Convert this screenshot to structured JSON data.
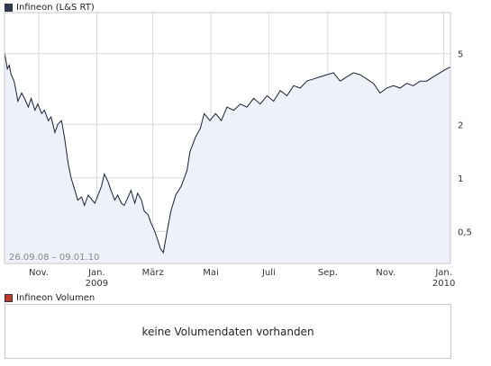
{
  "main_legend": {
    "label": "Infineon (L&S RT)",
    "swatch_color": "#2c3e55"
  },
  "volume_legend": {
    "label": "Infineon Volumen",
    "swatch_color": "#c0392b"
  },
  "volume_panel": {
    "message": "keine Volumendaten vorhanden"
  },
  "chart_data": {
    "type": "area",
    "title": "",
    "xlabel": "",
    "ylabel": "",
    "y_scale": "log",
    "ylim": [
      0.33,
      8.5
    ],
    "y_ticks": [
      5,
      2,
      1,
      0.5
    ],
    "y_tick_labels": [
      "5",
      "2",
      "1",
      "0,5"
    ],
    "x_ticks": [
      {
        "label": "Nov.",
        "date": "2008-11-01"
      },
      {
        "label": "Jan.",
        "sublabel": "2009",
        "date": "2009-01-01"
      },
      {
        "label": "März",
        "date": "2009-03-01"
      },
      {
        "label": "Mai",
        "date": "2009-05-01"
      },
      {
        "label": "Juli",
        "date": "2009-07-01"
      },
      {
        "label": "Sep.",
        "date": "2009-09-01"
      },
      {
        "label": "Nov.",
        "date": "2009-11-01"
      },
      {
        "label": "Jan.",
        "sublabel": "2010",
        "date": "2010-01-01"
      }
    ],
    "date_range_label": "26.09.08 – 09.01.10",
    "grid": true,
    "line_color": "#1a2236",
    "fill_color": "#eef0fa",
    "series": [
      {
        "x": [
          "2008-09-26",
          "2008-09-29",
          "2008-10-01",
          "2008-10-03",
          "2008-10-06",
          "2008-10-08",
          "2008-10-10",
          "2008-10-14",
          "2008-10-17",
          "2008-10-21",
          "2008-10-24",
          "2008-10-28",
          "2008-10-31",
          "2008-11-04",
          "2008-11-07",
          "2008-11-11",
          "2008-11-14",
          "2008-11-18",
          "2008-11-21",
          "2008-11-25",
          "2008-11-28",
          "2008-12-02",
          "2008-12-05",
          "2008-12-09",
          "2008-12-12",
          "2008-12-16",
          "2008-12-19",
          "2008-12-23",
          "2008-12-30",
          "2009-01-06",
          "2009-01-09",
          "2009-01-13",
          "2009-01-16",
          "2009-01-20",
          "2009-01-23",
          "2009-01-27",
          "2009-01-30",
          "2009-02-03",
          "2009-02-06",
          "2009-02-10",
          "2009-02-13",
          "2009-02-17",
          "2009-02-20",
          "2009-02-24",
          "2009-02-27",
          "2009-03-03",
          "2009-03-06",
          "2009-03-09",
          "2009-03-12",
          "2009-03-16",
          "2009-03-20",
          "2009-03-25",
          "2009-03-31",
          "2009-04-06",
          "2009-04-09",
          "2009-04-15",
          "2009-04-20",
          "2009-04-24",
          "2009-04-30",
          "2009-05-06",
          "2009-05-12",
          "2009-05-18",
          "2009-05-25",
          "2009-06-01",
          "2009-06-08",
          "2009-06-15",
          "2009-06-22",
          "2009-06-29",
          "2009-07-06",
          "2009-07-13",
          "2009-07-20",
          "2009-07-27",
          "2009-08-03",
          "2009-08-10",
          "2009-08-17",
          "2009-08-24",
          "2009-08-31",
          "2009-09-07",
          "2009-09-14",
          "2009-09-21",
          "2009-09-28",
          "2009-10-05",
          "2009-10-12",
          "2009-10-19",
          "2009-10-26",
          "2009-11-02",
          "2009-11-09",
          "2009-11-16",
          "2009-11-23",
          "2009-11-30",
          "2009-12-07",
          "2009-12-14",
          "2009-12-21",
          "2009-12-28",
          "2010-01-04",
          "2010-01-08"
        ],
        "y": [
          5.1,
          4.1,
          4.3,
          3.8,
          3.5,
          3.1,
          2.7,
          3.0,
          2.8,
          2.5,
          2.8,
          2.4,
          2.6,
          2.3,
          2.4,
          2.1,
          2.2,
          1.8,
          2.0,
          2.1,
          1.7,
          1.2,
          1.0,
          0.85,
          0.75,
          0.78,
          0.7,
          0.8,
          0.72,
          0.9,
          1.05,
          0.95,
          0.85,
          0.75,
          0.8,
          0.72,
          0.7,
          0.78,
          0.85,
          0.72,
          0.82,
          0.75,
          0.65,
          0.62,
          0.56,
          0.5,
          0.45,
          0.4,
          0.38,
          0.5,
          0.65,
          0.8,
          0.9,
          1.1,
          1.4,
          1.7,
          1.9,
          2.3,
          2.1,
          2.3,
          2.1,
          2.5,
          2.4,
          2.6,
          2.5,
          2.8,
          2.6,
          2.9,
          2.7,
          3.1,
          2.9,
          3.3,
          3.2,
          3.5,
          3.6,
          3.7,
          3.8,
          3.9,
          3.5,
          3.7,
          3.9,
          3.8,
          3.6,
          3.4,
          3.0,
          3.2,
          3.3,
          3.2,
          3.4,
          3.3,
          3.5,
          3.5,
          3.7,
          3.9,
          4.1,
          4.2
        ]
      }
    ]
  }
}
